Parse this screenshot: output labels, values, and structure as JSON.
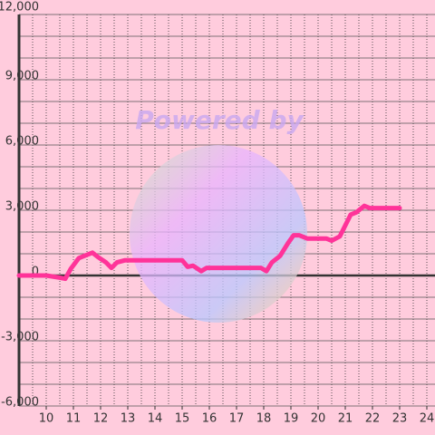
{
  "chart_data": {
    "type": "line",
    "annotation": "Powered by",
    "x": [
      9.0,
      10.0,
      10.5,
      10.7,
      10.9,
      11.2,
      11.5,
      11.7,
      11.9,
      12.2,
      12.4,
      12.6,
      12.9,
      13.5,
      14.5,
      15.0,
      15.2,
      15.4,
      15.7,
      15.9,
      16.5,
      17.5,
      17.9,
      18.1,
      18.3,
      18.6,
      18.9,
      19.1,
      19.3,
      19.6,
      20.0,
      20.3,
      20.5,
      20.8,
      21.0,
      21.2,
      21.4,
      21.7,
      21.9,
      22.3,
      23.0
    ],
    "series": [
      {
        "color": "#ff3399",
        "values": [
          0,
          0,
          -100,
          -150,
          300,
          800,
          950,
          1050,
          850,
          600,
          350,
          600,
          700,
          700,
          700,
          700,
          400,
          450,
          200,
          350,
          350,
          350,
          350,
          200,
          600,
          900,
          1500,
          1850,
          1850,
          1700,
          1700,
          1700,
          1600,
          1800,
          2300,
          2800,
          2900,
          3200,
          3100,
          3100,
          3100
        ]
      }
    ],
    "xlim": [
      9,
      24.3
    ],
    "xticks": [
      10,
      11,
      12,
      13,
      14,
      15,
      16,
      17,
      18,
      19,
      20,
      21,
      22,
      23,
      24
    ],
    "xgrid": [
      9.5,
      10,
      10.5,
      11,
      11.5,
      12,
      12.5,
      13,
      13.5,
      14,
      14.5,
      15,
      15.5,
      16,
      16.5,
      17,
      17.5,
      18,
      18.5,
      19,
      19.5,
      20,
      20.5,
      21,
      21.5,
      22,
      22.5,
      23,
      23.5,
      24
    ],
    "ylim": [
      -6000,
      12000
    ],
    "yticks": [
      {
        "value": -6000,
        "label": "-6,000"
      },
      {
        "value": -3000,
        "label": "-3,000"
      },
      0,
      {
        "value": 3000,
        "label": "3,000"
      },
      {
        "value": 6000,
        "label": "6,000"
      },
      {
        "value": 9000,
        "label": "9,000"
      },
      {
        "value": 12000,
        "label": "12,000"
      }
    ],
    "ygrid": [
      -5000,
      -4000,
      -2000,
      -1000,
      1000,
      2000,
      4000,
      5000,
      7000,
      8000,
      10000,
      11000
    ],
    "grid": true
  }
}
